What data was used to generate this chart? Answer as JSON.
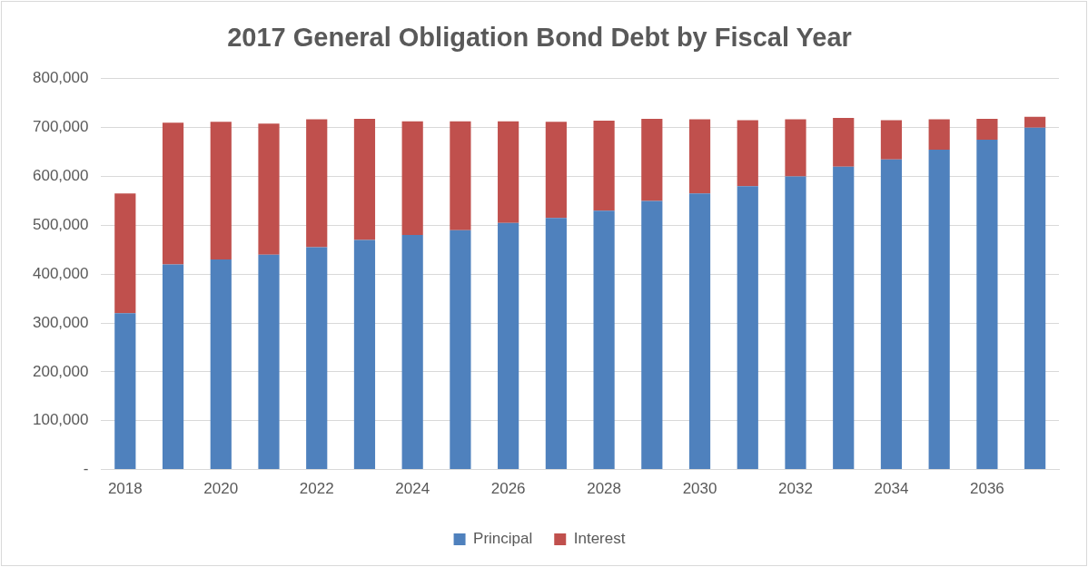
{
  "chart_data": {
    "type": "bar",
    "title": "2017 General Obligation Bond Debt by Fiscal Year",
    "categories": [
      "2018",
      null,
      "2020",
      null,
      "2022",
      null,
      "2024",
      null,
      "2026",
      null,
      "2028",
      null,
      "2030",
      null,
      "2032",
      null,
      "2034",
      null,
      "2036",
      null
    ],
    "stacked": true,
    "series": [
      {
        "name": "Principal",
        "color": "#4f81bd",
        "values": [
          320000,
          420000,
          430000,
          440000,
          455000,
          470000,
          480000,
          490000,
          505000,
          515000,
          530000,
          550000,
          565000,
          580000,
          600000,
          620000,
          635000,
          655000,
          675000,
          700000
        ]
      },
      {
        "name": "Interest",
        "color": "#c0504d",
        "values": [
          245000,
          290000,
          282000,
          268000,
          262000,
          248000,
          233000,
          223000,
          208000,
          197000,
          184000,
          168000,
          152000,
          135000,
          117000,
          100000,
          80000,
          62000,
          43000,
          22000
        ]
      }
    ],
    "ylim": [
      0,
      800000
    ],
    "yticks": [
      {
        "value": 0,
        "label": "-"
      },
      {
        "value": 100000,
        "label": "100,000"
      },
      {
        "value": 200000,
        "label": "200,000"
      },
      {
        "value": 300000,
        "label": "300,000"
      },
      {
        "value": 400000,
        "label": "400,000"
      },
      {
        "value": 500000,
        "label": "500,000"
      },
      {
        "value": 600000,
        "label": "600,000"
      },
      {
        "value": 700000,
        "label": "700,000"
      },
      {
        "value": 800000,
        "label": "800,000"
      }
    ],
    "grid": "y",
    "legend": "bottom"
  }
}
